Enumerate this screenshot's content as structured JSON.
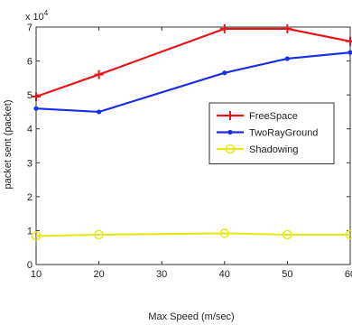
{
  "chart_data": {
    "type": "line",
    "xlabel": "Max Speed (m/sec)",
    "ylabel": "packet sent (packet)",
    "y_multiplier_label": "x 10",
    "y_multiplier_exponent": "4",
    "xlim": [
      10,
      60
    ],
    "ylim": [
      0,
      70000
    ],
    "x_ticks": [
      10,
      20,
      30,
      40,
      50,
      60
    ],
    "x_tick_labels": [
      "10",
      "20",
      "30",
      "40",
      "50",
      "60"
    ],
    "y_ticks": [
      0,
      10000,
      20000,
      30000,
      40000,
      50000,
      60000,
      70000
    ],
    "y_tick_labels": [
      "0",
      "1",
      "2",
      "3",
      "4",
      "5",
      "6",
      "7"
    ],
    "grid": false,
    "legend_placement": "right",
    "series": [
      {
        "name": "FreeSpace",
        "color": "#e8141b",
        "marker": "plus",
        "x": [
          10,
          20,
          40,
          50,
          60
        ],
        "values": [
          49500,
          56000,
          69500,
          69500,
          65800
        ]
      },
      {
        "name": "TwoRayGround",
        "color": "#1a2ee6",
        "marker": "dot",
        "x": [
          10,
          20,
          40,
          50,
          60
        ],
        "values": [
          46000,
          45000,
          56500,
          60700,
          62500
        ]
      },
      {
        "name": "Shadowing",
        "color": "#e6e81a",
        "marker": "circle",
        "x": [
          10,
          20,
          40,
          50,
          60
        ],
        "values": [
          8400,
          8800,
          9200,
          8800,
          8800
        ]
      }
    ]
  }
}
